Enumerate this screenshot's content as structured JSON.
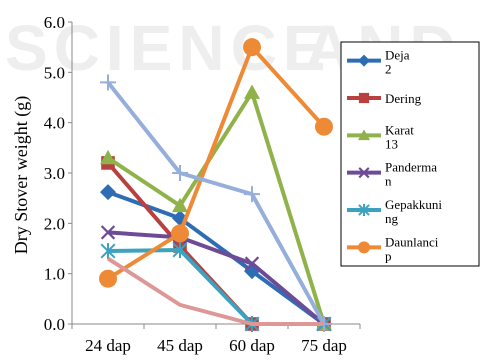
{
  "watermark": {
    "left": "SCIENCE",
    "right": "AND TEC"
  },
  "chart_data": {
    "type": "line",
    "ylabel": "Dry Stover weight (g)",
    "xlabel": "",
    "categories": [
      "24 dap",
      "45 dap",
      "60 dap",
      "75 dap"
    ],
    "ylim": [
      0,
      6
    ],
    "yticks": [
      "0.0",
      "1.0",
      "2.0",
      "3.0",
      "4.0",
      "5.0",
      "6.0"
    ],
    "grid": false,
    "legend_position": "right",
    "series": [
      {
        "name": "Deja 2",
        "color": "#2E6DB4",
        "marker": "diamond",
        "values": [
          2.62,
          2.1,
          1.05,
          0.0
        ]
      },
      {
        "name": "Dering",
        "color": "#B8413F",
        "marker": "square",
        "values": [
          3.2,
          1.55,
          0.0,
          0.0
        ]
      },
      {
        "name": "Karat 13",
        "color": "#8FB34A",
        "marker": "triangle",
        "values": [
          3.3,
          2.35,
          4.6,
          0.0
        ]
      },
      {
        "name": "Panderma n",
        "color": "#6D4B97",
        "marker": "x",
        "values": [
          1.82,
          1.72,
          1.2,
          0.0
        ]
      },
      {
        "name": "Gepakkuni ng",
        "color": "#3DA2BE",
        "marker": "star",
        "values": [
          1.45,
          1.47,
          0.0,
          0.0
        ]
      },
      {
        "name": "Daunlanci p",
        "color": "#EE8A36",
        "marker": "circle",
        "values": [
          0.9,
          1.8,
          5.5,
          3.92
        ]
      },
      {
        "name": "",
        "color": "#96AEDA",
        "marker": "plus",
        "values": [
          4.8,
          3.0,
          2.58,
          0.0
        ]
      },
      {
        "name": "",
        "color": "#DE9797",
        "marker": "none",
        "values": [
          1.3,
          0.38,
          0.0,
          0.0
        ]
      }
    ]
  }
}
